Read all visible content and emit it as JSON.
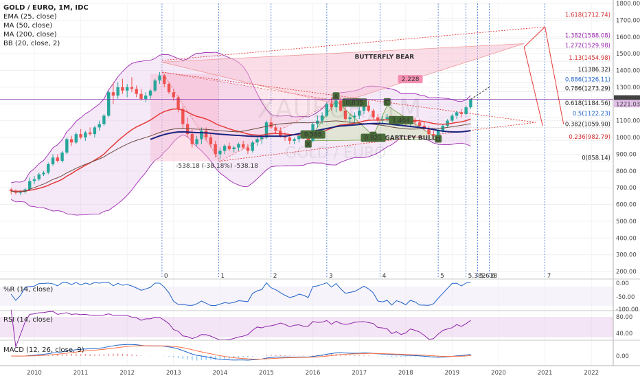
{
  "chart_header": {
    "title": "GOLD / EURO, 1M, IDC",
    "indicators": [
      "EMA (25, close)",
      "MA (50, close)",
      "MA (200, close)",
      "BB (20, close, 2)"
    ]
  },
  "chart_data": {
    "type": "candlestick",
    "x_axis_years": [
      "2010",
      "2011",
      "2012",
      "2013",
      "2014",
      "2015",
      "2016",
      "2017",
      "2018",
      "2019",
      "2020",
      "2021",
      "2022"
    ],
    "price_axis": [
      "1800.00",
      "1700.00",
      "1600.00",
      "1500.00",
      "1400.00",
      "1300.00",
      "1200.00",
      "1100.00",
      "1000.00",
      "900.00",
      "800.00",
      "700.00",
      "600.00",
      "500.00",
      "400.00",
      "300.00",
      "200.00"
    ],
    "ylim": [
      200,
      1800
    ],
    "last_price_labels": [
      "1227.36",
      "1221.03"
    ],
    "fib_levels": [
      {
        "label": "1.618(1712.74)",
        "value": 1712.74,
        "color": "#d32f2f"
      },
      {
        "label": "1.382(1588.08)",
        "value": 1588.08,
        "color": "#9c27b0"
      },
      {
        "label": "1.272(1529.98)",
        "value": 1529.98,
        "color": "#9c27b0"
      },
      {
        "label": "1.13(1454.98)",
        "value": 1454.98,
        "color": "#d32f2f"
      },
      {
        "label": "1(1386.32)",
        "value": 1386.32,
        "color": "#222222"
      },
      {
        "label": "0.886(1326.11)",
        "value": 1326.11,
        "color": "#1e63c8"
      },
      {
        "label": "0.786(1273.29)",
        "value": 1273.29,
        "color": "#222222"
      },
      {
        "label": "0.618(1184.56)",
        "value": 1184.56,
        "color": "#222222"
      },
      {
        "label": "0.5(1122.23)",
        "value": 1122.23,
        "color": "#1e63c8"
      },
      {
        "label": "0.382(1059.90)",
        "value": 1059.9,
        "color": "#222222"
      },
      {
        "label": "0.236(982.79)",
        "value": 982.79,
        "color": "#d32f2f"
      },
      {
        "label": "0(858.14)",
        "value": 858.14,
        "color": "#222222"
      }
    ],
    "time_cycle_labels": [
      "0",
      "1",
      "2",
      "3",
      "4",
      "5",
      "5.382",
      "5.618",
      "6",
      "7"
    ],
    "annotations": {
      "butterfly": "BUTTERFLY BEAR",
      "gartley": "GARTLEY BULL",
      "points": [
        "X",
        "A",
        "B",
        "C",
        "D"
      ],
      "ratios": [
        "0.835",
        "0.588",
        "1.464",
        "0.821",
        "2.228"
      ],
      "drop_label": "-538.18 (-38.18%) -538.18",
      "watermark_symbol": "XAUEUR, 1M",
      "watermark_sub": "GOLD / EURO"
    },
    "series": [
      {
        "name": "EMA (25, close)",
        "color": "#e53935"
      },
      {
        "name": "MA (50, close)",
        "color": "#6d4c41"
      },
      {
        "name": "MA (200, close)",
        "color": "#1a237e"
      },
      {
        "name": "BB (20, close, 2)",
        "color": "#9c27b0"
      }
    ],
    "candles": [
      [
        2009.5,
        690,
        700,
        660,
        680
      ],
      [
        2009.6,
        680,
        690,
        660,
        670
      ],
      [
        2009.7,
        670,
        685,
        655,
        675
      ],
      [
        2009.8,
        675,
        700,
        665,
        690
      ],
      [
        2009.9,
        690,
        760,
        680,
        740
      ],
      [
        2010.0,
        740,
        770,
        720,
        750
      ],
      [
        2010.1,
        750,
        790,
        740,
        780
      ],
      [
        2010.2,
        780,
        800,
        770,
        790
      ],
      [
        2010.3,
        790,
        850,
        780,
        840
      ],
      [
        2010.4,
        840,
        900,
        830,
        880
      ],
      [
        2010.5,
        880,
        900,
        850,
        860
      ],
      [
        2010.6,
        860,
        920,
        850,
        910
      ],
      [
        2010.7,
        910,
        1000,
        900,
        990
      ],
      [
        2010.8,
        990,
        1010,
        950,
        970
      ],
      [
        2010.9,
        970,
        1030,
        960,
        1020
      ],
      [
        2011.0,
        1020,
        1050,
        990,
        1000
      ],
      [
        2011.1,
        1000,
        1040,
        980,
        1030
      ],
      [
        2011.2,
        1030,
        1060,
        1010,
        1020
      ],
      [
        2011.3,
        1020,
        1070,
        1000,
        1060
      ],
      [
        2011.4,
        1060,
        1100,
        1040,
        1080
      ],
      [
        2011.5,
        1080,
        1140,
        1070,
        1130
      ],
      [
        2011.6,
        1130,
        1280,
        1120,
        1270
      ],
      [
        2011.7,
        1270,
        1330,
        1200,
        1250
      ],
      [
        2011.8,
        1250,
        1330,
        1230,
        1300
      ],
      [
        2011.9,
        1300,
        1350,
        1260,
        1280
      ],
      [
        2012.0,
        1280,
        1320,
        1240,
        1300
      ],
      [
        2012.1,
        1300,
        1360,
        1270,
        1290
      ],
      [
        2012.2,
        1290,
        1310,
        1240,
        1260
      ],
      [
        2012.3,
        1260,
        1290,
        1220,
        1230
      ],
      [
        2012.4,
        1230,
        1270,
        1210,
        1250
      ],
      [
        2012.5,
        1250,
        1290,
        1230,
        1280
      ],
      [
        2012.6,
        1280,
        1350,
        1270,
        1340
      ],
      [
        2012.7,
        1340,
        1390,
        1320,
        1370
      ],
      [
        2012.8,
        1370,
        1380,
        1300,
        1320
      ],
      [
        2012.9,
        1320,
        1330,
        1260,
        1270
      ],
      [
        2013.0,
        1270,
        1290,
        1220,
        1240
      ],
      [
        2013.1,
        1240,
        1250,
        1150,
        1170
      ],
      [
        2013.2,
        1170,
        1190,
        1050,
        1080
      ],
      [
        2013.3,
        1080,
        1120,
        1000,
        1020
      ],
      [
        2013.4,
        1020,
        1050,
        940,
        960
      ],
      [
        2013.5,
        960,
        1010,
        950,
        990
      ],
      [
        2013.6,
        990,
        1060,
        960,
        1040
      ],
      [
        2013.7,
        1040,
        1060,
        980,
        1000
      ],
      [
        2013.8,
        1000,
        1020,
        940,
        960
      ],
      [
        2013.9,
        960,
        980,
        880,
        900
      ],
      [
        2014.0,
        900,
        940,
        870,
        920
      ],
      [
        2014.1,
        920,
        960,
        900,
        950
      ],
      [
        2014.2,
        950,
        970,
        920,
        930
      ],
      [
        2014.3,
        930,
        950,
        910,
        940
      ],
      [
        2014.4,
        940,
        970,
        920,
        960
      ],
      [
        2014.5,
        960,
        980,
        930,
        940
      ],
      [
        2014.6,
        940,
        960,
        900,
        920
      ],
      [
        2014.7,
        920,
        980,
        910,
        970
      ],
      [
        2014.8,
        970,
        1000,
        950,
        990
      ],
      [
        2014.9,
        990,
        1020,
        960,
        1000
      ],
      [
        2015.0,
        1000,
        1100,
        990,
        1090
      ],
      [
        2015.1,
        1090,
        1120,
        1050,
        1060
      ],
      [
        2015.2,
        1060,
        1080,
        1020,
        1040
      ],
      [
        2015.3,
        1040,
        1060,
        1000,
        1010
      ],
      [
        2015.4,
        1010,
        1030,
        980,
        1000
      ],
      [
        2015.5,
        1000,
        1010,
        960,
        980
      ],
      [
        2015.6,
        980,
        1000,
        960,
        990
      ],
      [
        2015.7,
        990,
        1020,
        970,
        1010
      ],
      [
        2015.8,
        1010,
        1030,
        990,
        1000
      ],
      [
        2015.9,
        1000,
        1010,
        960,
        980
      ],
      [
        2016.0,
        980,
        1090,
        970,
        1080
      ],
      [
        2016.1,
        1080,
        1130,
        1060,
        1100
      ],
      [
        2016.2,
        1100,
        1150,
        1080,
        1130
      ],
      [
        2016.3,
        1130,
        1210,
        1120,
        1200
      ],
      [
        2016.4,
        1200,
        1240,
        1160,
        1180
      ],
      [
        2016.5,
        1180,
        1230,
        1150,
        1220
      ],
      [
        2016.6,
        1220,
        1240,
        1150,
        1160
      ],
      [
        2016.7,
        1160,
        1180,
        1100,
        1110
      ],
      [
        2016.8,
        1110,
        1140,
        1080,
        1120
      ],
      [
        2016.9,
        1120,
        1150,
        1090,
        1130
      ],
      [
        2017.0,
        1130,
        1180,
        1110,
        1160
      ],
      [
        2017.1,
        1160,
        1200,
        1140,
        1190
      ],
      [
        2017.2,
        1190,
        1220,
        1150,
        1160
      ],
      [
        2017.3,
        1160,
        1170,
        1110,
        1120
      ],
      [
        2017.4,
        1120,
        1140,
        1090,
        1100
      ],
      [
        2017.5,
        1100,
        1130,
        1080,
        1110
      ],
      [
        2017.6,
        1110,
        1140,
        1090,
        1120
      ],
      [
        2017.7,
        1120,
        1130,
        1080,
        1090
      ],
      [
        2017.8,
        1090,
        1120,
        1070,
        1110
      ],
      [
        2017.9,
        1110,
        1130,
        1080,
        1100
      ],
      [
        2018.0,
        1100,
        1120,
        1070,
        1080
      ],
      [
        2018.1,
        1080,
        1110,
        1060,
        1100
      ],
      [
        2018.2,
        1100,
        1120,
        1070,
        1090
      ],
      [
        2018.3,
        1090,
        1110,
        1060,
        1070
      ],
      [
        2018.4,
        1070,
        1090,
        1040,
        1050
      ],
      [
        2018.5,
        1050,
        1070,
        1010,
        1020
      ],
      [
        2018.6,
        1020,
        1040,
        990,
        1010
      ],
      [
        2018.7,
        1010,
        1050,
        1000,
        1040
      ],
      [
        2018.8,
        1040,
        1080,
        1030,
        1070
      ],
      [
        2018.9,
        1070,
        1110,
        1060,
        1100
      ],
      [
        2019.0,
        1100,
        1140,
        1090,
        1130
      ],
      [
        2019.1,
        1130,
        1160,
        1110,
        1150
      ],
      [
        2019.2,
        1150,
        1170,
        1120,
        1140
      ],
      [
        2019.3,
        1140,
        1190,
        1130,
        1180
      ],
      [
        2019.4,
        1180,
        1230,
        1170,
        1227
      ]
    ]
  },
  "panels": {
    "wr": {
      "title": "%R (14, close)",
      "ticks": [
        "0.00",
        "-50.00",
        "-100.00"
      ]
    },
    "rsi": {
      "title": "RSI (14, close)",
      "ticks": [
        "80.00",
        "40.00"
      ]
    },
    "macd": {
      "title": "MACD (12, 26, close, 9)",
      "ticks": [
        "0.00"
      ]
    }
  }
}
